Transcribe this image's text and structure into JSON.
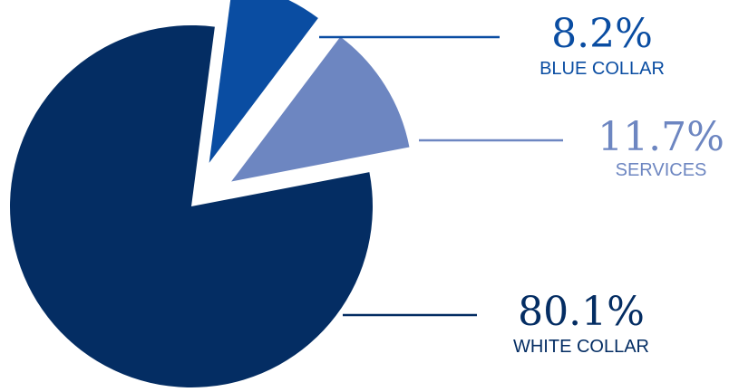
{
  "chart_data": {
    "type": "pie",
    "categories": [
      "BLUE COLLAR",
      "SERVICES",
      "WHITE COLLAR"
    ],
    "values": [
      8.2,
      11.7,
      80.1
    ],
    "value_labels": [
      "8.2%",
      "11.7%",
      "80.1%"
    ],
    "colors": [
      "#0a4da2",
      "#6d86c1",
      "#042d63"
    ],
    "label_colors": [
      "#0a4da2",
      "#6d86c1",
      "#042d63"
    ],
    "exploded": [
      true,
      true,
      false
    ],
    "legend": "none"
  }
}
